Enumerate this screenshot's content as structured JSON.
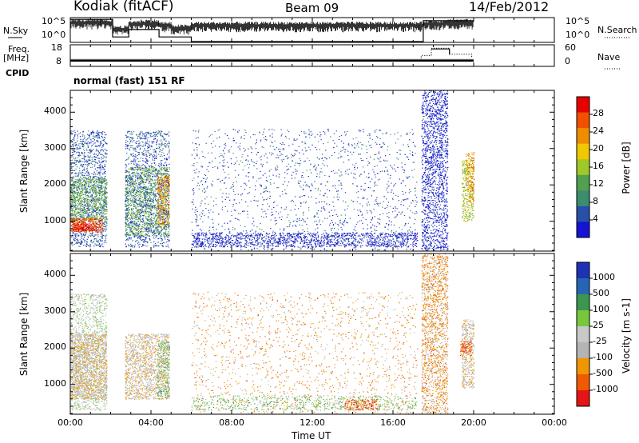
{
  "header": {
    "station": "Kodiak (fitACF)",
    "beam": "Beam 09",
    "date": "14/Feb/2012"
  },
  "panels": {
    "nsky": {
      "label": "N.Sky",
      "ticks": [
        "10^5",
        "10^0"
      ],
      "right_ticks": [
        "10^5",
        "10^0"
      ],
      "right_label": "N.Search"
    },
    "freq": {
      "label_1": "Freq.",
      "label_2": "[MHz]",
      "ticks": [
        "18",
        "8"
      ],
      "right_ticks": [
        "60",
        "0"
      ],
      "right_label": "Nave"
    },
    "cpid": {
      "label": "CPID",
      "text": "normal (fast) 151 RF"
    }
  },
  "colors": {
    "power": [
      "#1414d2",
      "#2850aa",
      "#3c8c6e",
      "#50a050",
      "#a0c828",
      "#f0c800",
      "#f08c00",
      "#f05000",
      "#e60000"
    ],
    "velocity": [
      "#e61414",
      "#f05a00",
      "#f09600",
      "#b4b4b4",
      "#c8c8c8",
      "#78c83c",
      "#3c9650",
      "#2864b4",
      "#1e32b4"
    ]
  },
  "chart_data": [
    {
      "type": "heatmap",
      "title": "",
      "quantity": "Power",
      "xlabel": "Time UT",
      "ylabel": "Slant Range [km]",
      "xlim": [
        0,
        24
      ],
      "ylim": [
        180,
        4600
      ],
      "x_ticks": [
        "00:00",
        "04:00",
        "08:00",
        "12:00",
        "16:00",
        "20:00",
        "00:00"
      ],
      "y_ticks": [
        1000,
        2000,
        3000,
        4000
      ],
      "colorbar": {
        "label": "Power [dB]",
        "ticks": [
          "28",
          "24",
          "20",
          "16",
          "12",
          "8",
          "4"
        ]
      },
      "regions": [
        {
          "t": [
            0.0,
            1.8
          ],
          "r": [
            300,
            3500
          ],
          "c": 1,
          "d": 0.35
        },
        {
          "t": [
            0.0,
            1.8
          ],
          "r": [
            1000,
            2200
          ],
          "c": 3,
          "d": 0.6
        },
        {
          "t": [
            0.0,
            1.6
          ],
          "r": [
            700,
            1100
          ],
          "c": 7,
          "d": 0.85
        },
        {
          "t": [
            0.1,
            1.3
          ],
          "r": [
            750,
            950
          ],
          "c": 8,
          "d": 0.8
        },
        {
          "t": [
            2.7,
            4.9
          ],
          "r": [
            600,
            2500
          ],
          "c": 3,
          "d": 0.5
        },
        {
          "t": [
            2.7,
            4.9
          ],
          "r": [
            300,
            3500
          ],
          "c": 1,
          "d": 0.3
        },
        {
          "t": [
            4.3,
            4.9
          ],
          "r": [
            900,
            2300
          ],
          "c": 6,
          "d": 0.55
        },
        {
          "t": [
            6.0,
            17.2
          ],
          "r": [
            200,
            3550
          ],
          "c": 1,
          "d": 0.28
        },
        {
          "t": [
            6.0,
            17.2
          ],
          "r": [
            300,
            700
          ],
          "c": 0,
          "d": 0.45
        },
        {
          "t": [
            17.4,
            18.7
          ],
          "r": [
            200,
            4600
          ],
          "c": 0,
          "d": 0.55
        },
        {
          "t": [
            19.4,
            20.0
          ],
          "r": [
            1000,
            2700
          ],
          "c": 4,
          "d": 0.55
        },
        {
          "t": [
            19.6,
            20.0
          ],
          "r": [
            1500,
            2900
          ],
          "c": 6,
          "d": 0.5
        }
      ]
    },
    {
      "type": "heatmap",
      "title": "",
      "quantity": "Velocity",
      "xlabel": "Time UT",
      "ylabel": "Slant Range [km]",
      "xlim": [
        0,
        24
      ],
      "ylim": [
        180,
        4600
      ],
      "x_ticks": [
        "00:00",
        "04:00",
        "08:00",
        "12:00",
        "16:00",
        "20:00",
        "00:00"
      ],
      "y_ticks": [
        1000,
        2000,
        3000,
        4000
      ],
      "colorbar": {
        "label": "Velocity [m s-1]",
        "ticks": [
          "1000",
          "500",
          "100",
          "25",
          "-25",
          "-100",
          "-500",
          "-1000"
        ]
      },
      "regions": [
        {
          "t": [
            0.0,
            1.8
          ],
          "r": [
            300,
            3500
          ],
          "c": 4,
          "d": 0.35
        },
        {
          "t": [
            0.0,
            1.8
          ],
          "r": [
            600,
            2400
          ],
          "c": 3,
          "d": 0.85
        },
        {
          "t": [
            2.7,
            4.9
          ],
          "r": [
            600,
            2400
          ],
          "c": 3,
          "d": 0.6
        },
        {
          "t": [
            4.3,
            4.9
          ],
          "r": [
            600,
            2200
          ],
          "c": 5,
          "d": 0.5
        },
        {
          "t": [
            6.0,
            17.2
          ],
          "r": [
            200,
            3550
          ],
          "c": 2,
          "d": 0.28
        },
        {
          "t": [
            6.0,
            17.2
          ],
          "r": [
            300,
            700
          ],
          "c": 5,
          "d": 0.25
        },
        {
          "t": [
            13.6,
            15.2
          ],
          "r": [
            300,
            600
          ],
          "c": 1,
          "d": 0.55
        },
        {
          "t": [
            17.4,
            18.7
          ],
          "r": [
            200,
            4600
          ],
          "c": 2,
          "d": 0.5
        },
        {
          "t": [
            19.4,
            20.0
          ],
          "r": [
            900,
            2800
          ],
          "c": 3,
          "d": 0.6
        },
        {
          "t": [
            19.3,
            19.9
          ],
          "r": [
            1800,
            2200
          ],
          "c": 1,
          "d": 0.6
        }
      ]
    },
    {
      "type": "line",
      "title": "",
      "quantity": "N.Sky / N.Search",
      "ylim": [
        0,
        5
      ],
      "x": [
        0,
        1.5,
        2.1,
        2.9,
        3.5,
        4.4,
        5.0,
        6.0,
        17.3,
        17.5,
        18.5,
        20.0
      ],
      "values": [
        4.6,
        4.6,
        3.2,
        4.3,
        4.5,
        4.0,
        3.4,
        4.0,
        4.0,
        4.4,
        4.6,
        4.6
      ],
      "search": [
        4.8,
        4.8,
        1.0,
        2.6,
        2.6,
        1.0,
        1.0,
        0.0,
        0.0,
        4.5,
        4.5,
        4.5
      ]
    },
    {
      "type": "line",
      "title": "",
      "quantity": "Freq / Nave",
      "freq_mhz": 10.5,
      "x": [
        0,
        17.4,
        17.4,
        17.9,
        17.9,
        18.8,
        18.8,
        19.9,
        19.9,
        20.0
      ],
      "nave": [
        14,
        14,
        30,
        30,
        52,
        52,
        34,
        34,
        28,
        28
      ]
    }
  ]
}
